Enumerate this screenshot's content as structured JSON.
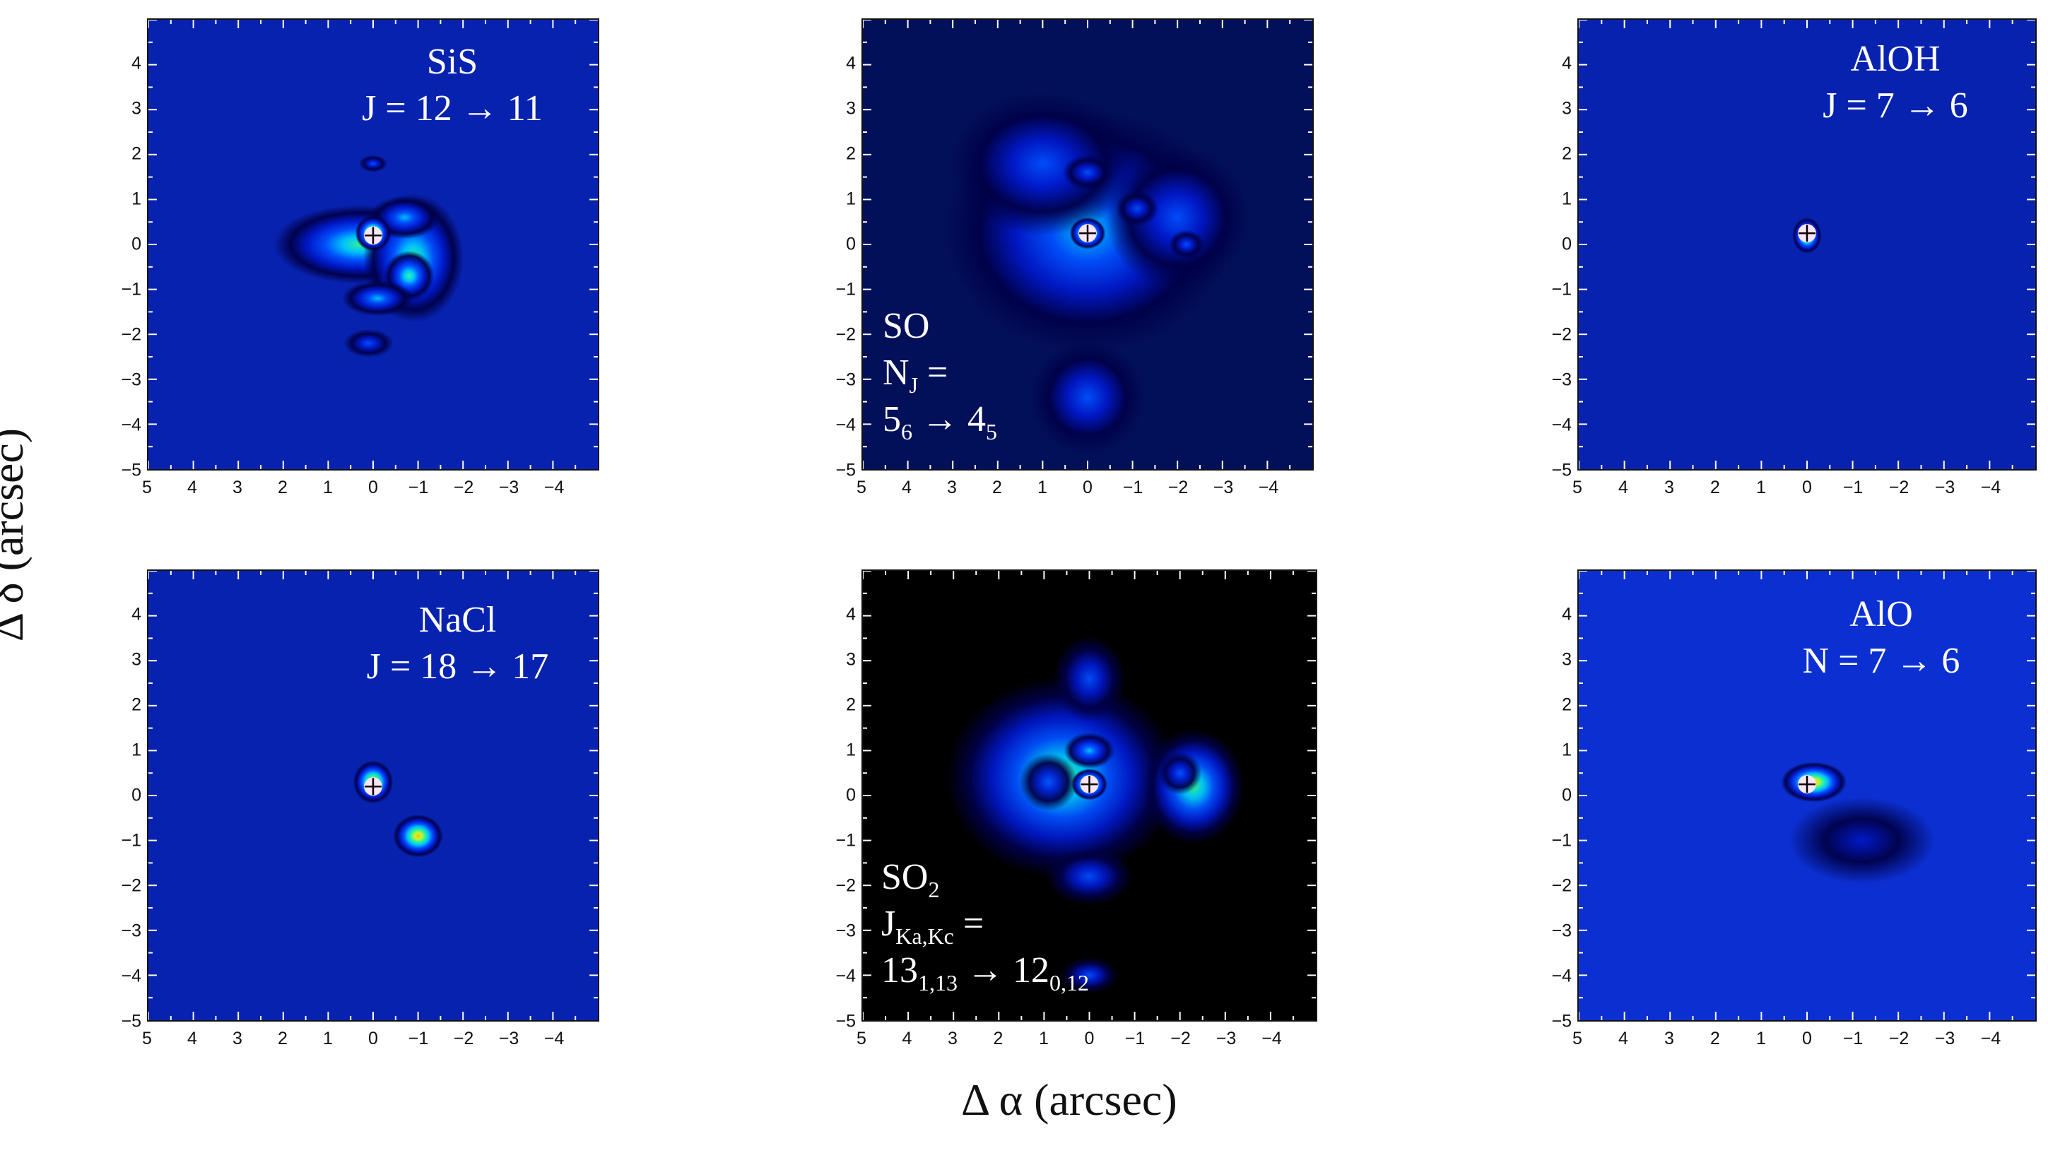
{
  "figure": {
    "xlabel": "Δ α (arcsec)",
    "ylabel": "Δ δ (arcsec)"
  },
  "colormap": [
    "#000048",
    "#0018c8",
    "#0050ff",
    "#00c8ff",
    "#30ff9a",
    "#d8ff20",
    "#ffd000",
    "#ff2a00",
    "#ff00b0"
  ],
  "chart_data": [
    {
      "type": "heatmap",
      "molecule": "SiS",
      "transition_lines": [
        "SiS",
        "J = 12 → 11"
      ],
      "xlim": [
        5,
        -5
      ],
      "ylim": [
        -5,
        5
      ],
      "x_ticks": [
        "5",
        "4",
        "3",
        "2",
        "1",
        "0",
        "−1",
        "−2",
        "−3",
        "−4"
      ],
      "y_ticks": [
        "4",
        "3",
        "2",
        "1",
        "0",
        "−1",
        "−2",
        "−3",
        "−4",
        "−5"
      ],
      "peak": [
        0.0,
        0.2
      ],
      "background": "#0822b0",
      "emission": [
        {
          "x": 0.3,
          "y": 0.0,
          "sx": 1.2,
          "sy": 0.55,
          "a": 0.45
        },
        {
          "x": -0.9,
          "y": -0.3,
          "sx": 0.7,
          "sy": 0.9,
          "a": 0.5
        },
        {
          "x": -0.8,
          "y": -0.7,
          "sx": 0.35,
          "sy": 0.35,
          "a": 0.45
        },
        {
          "x": -0.7,
          "y": 0.6,
          "sx": 0.5,
          "sy": 0.3,
          "a": 0.35
        },
        {
          "x": -0.1,
          "y": -1.2,
          "sx": 0.5,
          "sy": 0.25,
          "a": 0.35
        },
        {
          "x": 0.1,
          "y": -2.2,
          "sx": 0.35,
          "sy": 0.2,
          "a": 0.25
        },
        {
          "x": 0.0,
          "y": 1.8,
          "sx": 0.2,
          "sy": 0.12,
          "a": 0.2
        },
        {
          "x": 0.0,
          "y": 0.25,
          "sx": 0.25,
          "sy": 0.25,
          "a": 0.75
        }
      ]
    },
    {
      "type": "heatmap",
      "molecule": "SO",
      "transition_lines": [
        "SO",
        "N_J =",
        " 5_6 → 4_5"
      ],
      "xlim": [
        5,
        -5
      ],
      "ylim": [
        -5,
        5
      ],
      "x_ticks": [
        "5",
        "4",
        "3",
        "2",
        "1",
        "0",
        "−1",
        "−2",
        "−3",
        "−4"
      ],
      "y_ticks": [
        "4",
        "3",
        "2",
        "1",
        "0",
        "−1",
        "−2",
        "−3",
        "−4",
        "−5"
      ],
      "peak": [
        0.0,
        0.25
      ],
      "background": "#02105a",
      "emission": [
        {
          "x": 0.0,
          "y": 0.3,
          "sx": 2.0,
          "sy": 1.7,
          "a": 0.35
        },
        {
          "x": 1.0,
          "y": 1.8,
          "sx": 1.3,
          "sy": 1.0,
          "a": 0.25
        },
        {
          "x": -2.0,
          "y": 0.6,
          "sx": 1.0,
          "sy": 1.0,
          "a": 0.25
        },
        {
          "x": 0.0,
          "y": -3.4,
          "sx": 0.8,
          "sy": 0.8,
          "a": 0.2
        },
        {
          "x": 0.0,
          "y": 1.6,
          "sx": 0.35,
          "sy": 0.25,
          "a": 0.3
        },
        {
          "x": -1.1,
          "y": 0.8,
          "sx": 0.3,
          "sy": 0.25,
          "a": 0.25
        },
        {
          "x": -2.2,
          "y": 0.0,
          "sx": 0.25,
          "sy": 0.2,
          "a": 0.25
        },
        {
          "x": 0.0,
          "y": 0.25,
          "sx": 0.25,
          "sy": 0.22,
          "a": 0.75
        }
      ]
    },
    {
      "type": "heatmap",
      "molecule": "AlOH",
      "transition_lines": [
        "AlOH",
        "J = 7 → 6"
      ],
      "xlim": [
        5,
        -5
      ],
      "ylim": [
        -5,
        5
      ],
      "x_ticks": [
        "5",
        "4",
        "3",
        "2",
        "1",
        "0",
        "−1",
        "−2",
        "−3",
        "−4"
      ],
      "y_ticks": [
        "4",
        "3",
        "2",
        "1",
        "0",
        "−1",
        "−2",
        "−3",
        "−4",
        "−5"
      ],
      "peak": [
        0.0,
        0.25
      ],
      "background": "#0822b0",
      "emission": [
        {
          "x": 0.0,
          "y": 0.2,
          "sx": 0.2,
          "sy": 0.25,
          "a": 0.7
        }
      ]
    },
    {
      "type": "heatmap",
      "molecule": "NaCl",
      "transition_lines": [
        "NaCl",
        "J = 18 → 17"
      ],
      "xlim": [
        5,
        -5
      ],
      "ylim": [
        -5,
        5
      ],
      "x_ticks": [
        "5",
        "4",
        "3",
        "2",
        "1",
        "0",
        "−1",
        "−2",
        "−3",
        "−4"
      ],
      "y_ticks": [
        "4",
        "3",
        "2",
        "1",
        "0",
        "−1",
        "−2",
        "−3",
        "−4",
        "−5"
      ],
      "peak": [
        0.0,
        0.2
      ],
      "background": "#0822b0",
      "emission": [
        {
          "x": 0.0,
          "y": 0.3,
          "sx": 0.28,
          "sy": 0.3,
          "a": 0.75
        },
        {
          "x": -1.0,
          "y": -0.9,
          "sx": 0.35,
          "sy": 0.3,
          "a": 0.75
        }
      ]
    },
    {
      "type": "heatmap",
      "molecule": "SO2",
      "transition_lines": [
        "SO_2",
        "J_Ka,Kc =",
        "13_1,13 → 12_0,12"
      ],
      "xlim": [
        5,
        -5
      ],
      "ylim": [
        -5,
        5
      ],
      "x_ticks": [
        "5",
        "4",
        "3",
        "2",
        "1",
        "0",
        "−1",
        "−2",
        "−3",
        "−4"
      ],
      "y_ticks": [
        "4",
        "3",
        "2",
        "1",
        "0",
        "−1",
        "−2",
        "−3",
        "−4",
        "−5"
      ],
      "peak": [
        0.0,
        0.25
      ],
      "background": "#000000",
      "emission": [
        {
          "x": 0.6,
          "y": 0.4,
          "sx": 1.6,
          "sy": 1.4,
          "a": 0.55
        },
        {
          "x": -2.3,
          "y": 0.2,
          "sx": 0.7,
          "sy": 0.8,
          "a": 0.55
        },
        {
          "x": 0.0,
          "y": 2.6,
          "sx": 0.5,
          "sy": 0.6,
          "a": 0.25
        },
        {
          "x": 0.0,
          "y": -1.8,
          "sx": 0.6,
          "sy": 0.4,
          "a": 0.25
        },
        {
          "x": 0.0,
          "y": -4.0,
          "sx": 0.4,
          "sy": 0.25,
          "a": 0.25
        },
        {
          "x": 0.0,
          "y": 1.0,
          "sx": 0.35,
          "sy": 0.25,
          "a": 0.35
        },
        {
          "x": 0.9,
          "y": 0.3,
          "sx": 0.4,
          "sy": 0.4,
          "a": 0.25
        },
        {
          "x": -2.0,
          "y": 0.5,
          "sx": 0.3,
          "sy": 0.3,
          "a": 0.3
        },
        {
          "x": 0.0,
          "y": 0.25,
          "sx": 0.25,
          "sy": 0.22,
          "a": 0.7
        }
      ]
    },
    {
      "type": "heatmap",
      "molecule": "AlO",
      "transition_lines": [
        "AlO",
        "N = 7 → 6"
      ],
      "xlim": [
        5,
        -5
      ],
      "ylim": [
        -5,
        5
      ],
      "x_ticks": [
        "5",
        "4",
        "3",
        "2",
        "1",
        "0",
        "−1",
        "−2",
        "−3",
        "−4"
      ],
      "y_ticks": [
        "4",
        "3",
        "2",
        "1",
        "0",
        "−1",
        "−2",
        "−3",
        "−4",
        "−5"
      ],
      "peak": [
        0.0,
        0.25
      ],
      "background": "#0b2fd0",
      "emission": [
        {
          "x": -0.15,
          "y": 0.3,
          "sx": 0.45,
          "sy": 0.28,
          "a": 0.75
        },
        {
          "x": -1.2,
          "y": -1.0,
          "sx": 1.0,
          "sy": 0.6,
          "a": 0.12
        }
      ]
    }
  ]
}
